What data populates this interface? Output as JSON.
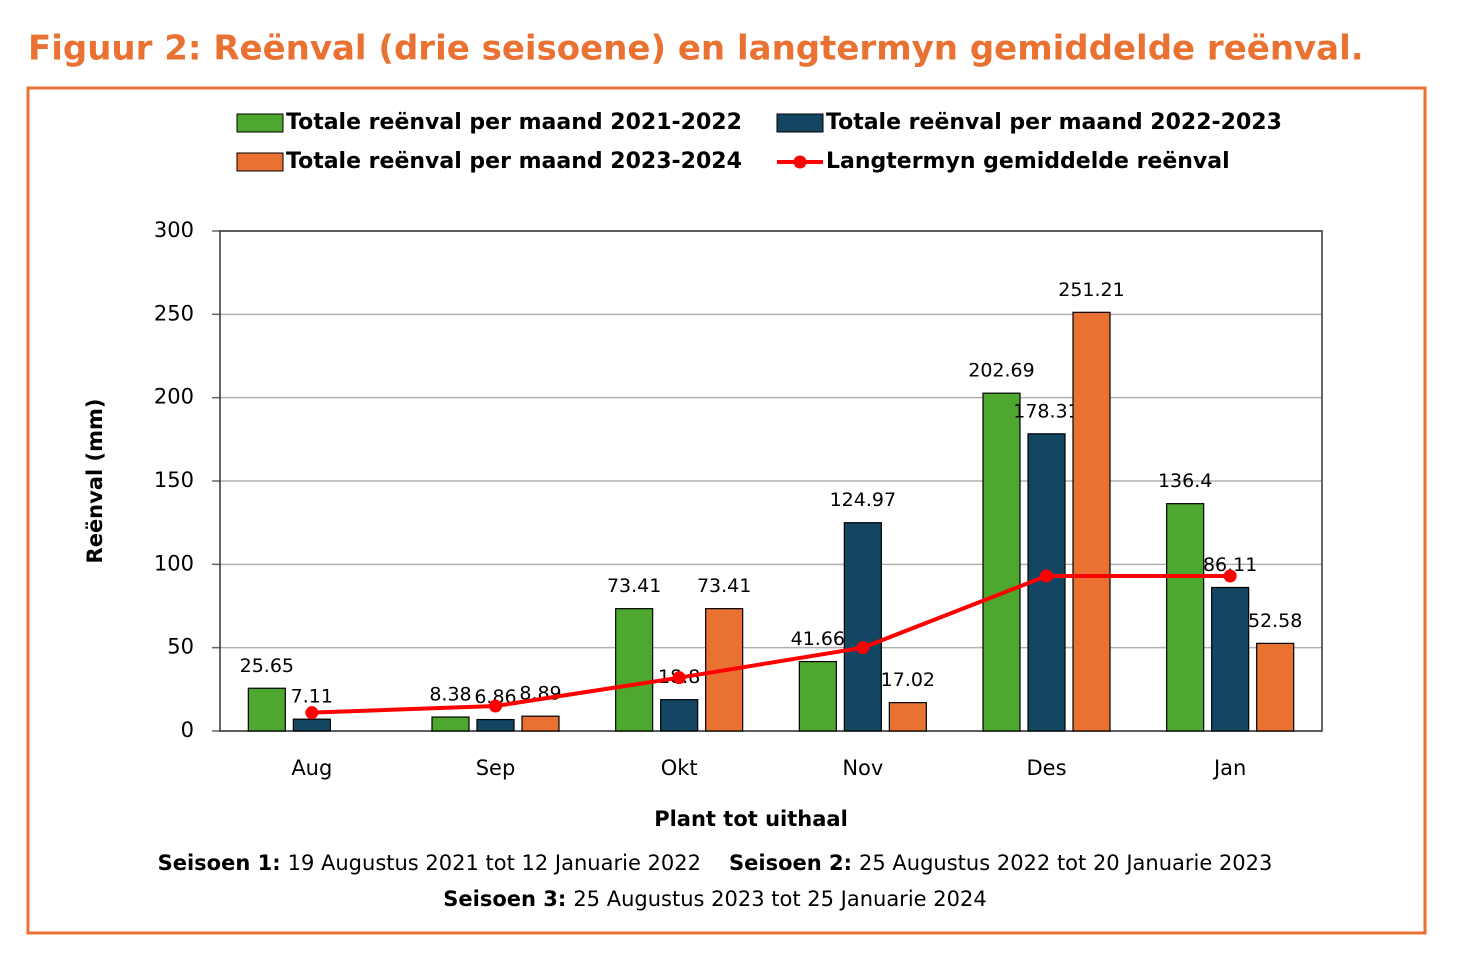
{
  "chart_data": {
    "type": "bar",
    "title": "Figuur 2: Reënval (drie seisoene) en langtermyn gemiddelde reënval.",
    "y_label": "Reënval (mm)",
    "x_label": "Plant tot uithaal",
    "categories": [
      "Aug",
      "Sep",
      "Okt",
      "Nov",
      "Des",
      "Jan"
    ],
    "series": [
      {
        "name": "Totale reënval per maand 2021-2022",
        "color": "#4ea72e",
        "type": "bar",
        "values": [
          25.65,
          8.38,
          73.41,
          41.66,
          202.69,
          136.4
        ]
      },
      {
        "name": "Totale reënval per maand 2022-2023",
        "color": "#124662",
        "type": "bar",
        "values": [
          7.11,
          6.86,
          18.8,
          124.97,
          178.31,
          86.11
        ]
      },
      {
        "name": "Totale reënval per maand 2023-2024",
        "color": "#e97132",
        "type": "bar",
        "values": [
          null,
          8.89,
          73.41,
          17.02,
          251.21,
          52.58
        ]
      },
      {
        "name": "Langtermyn gemiddelde reënval",
        "color": "#ff0000",
        "type": "line",
        "values": [
          11,
          15,
          32,
          50,
          93,
          93
        ]
      }
    ],
    "ylim": [
      0,
      300
    ],
    "yticks": [
      0,
      50,
      100,
      150,
      200,
      250,
      300
    ],
    "grid": true,
    "legend": "top",
    "notes": [
      {
        "label": "Seisoen 1:",
        "text": "19 Augustus 2021 tot 12 Januarie 2022"
      },
      {
        "label": "Seisoen 2:",
        "text": "25 Augustus 2022 tot 20 Januarie 2023"
      },
      {
        "label": "Seisoen 3:",
        "text": "25 Augustus 2023 tot 25 Januarie 2024"
      }
    ]
  }
}
